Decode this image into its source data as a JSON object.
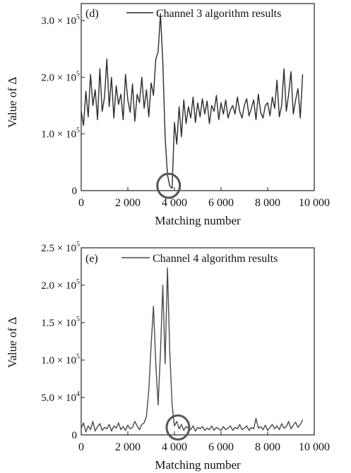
{
  "chart_data": [
    {
      "type": "line",
      "panel_label": "(d)",
      "legend": "Channel 3 algorithm results",
      "legend_position": "top-right",
      "xlabel": "Matching number",
      "ylabel": "Value of Δ",
      "xlim": [
        0,
        10000
      ],
      "ylim": [
        0,
        330000
      ],
      "grid": false,
      "x_ticks": [
        0,
        2000,
        4000,
        6000,
        8000,
        10000
      ],
      "x_tick_labels": [
        "0",
        "2 000",
        "4 000",
        "6 000",
        "8 000",
        "10 000"
      ],
      "y_ticks": [
        {
          "value": 0,
          "mantissa": "0",
          "exp": ""
        },
        {
          "value": 100000,
          "mantissa": "1.0 × 10",
          "exp": "5"
        },
        {
          "value": 200000,
          "mantissa": "2.0 × 10",
          "exp": "5"
        },
        {
          "value": 300000,
          "mantissa": "3.0 × 10",
          "exp": "5"
        }
      ],
      "line_color": "#2b2b2b",
      "series": [
        {
          "x": [
            0,
            100,
            200,
            300,
            400,
            500,
            600,
            700,
            800,
            900,
            1000,
            1100,
            1200,
            1300,
            1400,
            1500,
            1600,
            1700,
            1800,
            1900,
            2000,
            2100,
            2200,
            2300,
            2400,
            2500,
            2600,
            2700,
            2800,
            2900,
            3000,
            3100,
            3200,
            3300,
            3400,
            3500,
            3600,
            3700,
            3800,
            3900,
            4000,
            4100,
            4200,
            4300,
            4400,
            4500,
            4600,
            4700,
            4800,
            4900,
            5000,
            5100,
            5200,
            5300,
            5400,
            5500,
            5600,
            5700,
            5800,
            5900,
            6000,
            6100,
            6200,
            6300,
            6400,
            6500,
            6600,
            6700,
            6800,
            6900,
            7000,
            7100,
            7200,
            7300,
            7400,
            7500,
            7600,
            7700,
            7800,
            7900,
            8000,
            8100,
            8200,
            8300,
            8400,
            8500,
            8600,
            8700,
            8800,
            8900,
            9000,
            9100,
            9200,
            9300,
            9400,
            9500
          ],
          "y": [
            140000,
            115000,
            175000,
            130000,
            205000,
            150000,
            178000,
            125000,
            215000,
            140000,
            165000,
            232000,
            148000,
            200000,
            128000,
            185000,
            152000,
            170000,
            125000,
            205000,
            160000,
            138000,
            188000,
            122000,
            170000,
            155000,
            200000,
            145000,
            178000,
            130000,
            190000,
            168000,
            232000,
            245000,
            312000,
            228000,
            95000,
            28000,
            8000,
            4000,
            120000,
            82000,
            148000,
            95000,
            160000,
            118000,
            148000,
            128000,
            165000,
            120000,
            155000,
            130000,
            162000,
            135000,
            158000,
            118000,
            150000,
            140000,
            168000,
            125000,
            155000,
            135000,
            160000,
            128000,
            142000,
            150000,
            135000,
            165000,
            140000,
            128000,
            150000,
            162000,
            132000,
            145000,
            160000,
            125000,
            170000,
            138000,
            128000,
            150000,
            155000,
            132000,
            165000,
            145000,
            195000,
            130000,
            150000,
            215000,
            140000,
            170000,
            210000,
            135000,
            160000,
            180000,
            128000,
            205000
          ]
        }
      ],
      "annotation": "circle",
      "circle_center": [
        3750,
        6000
      ]
    },
    {
      "type": "line",
      "panel_label": "(e)",
      "legend": "Channel 4 algorithm results",
      "legend_position": "top-right",
      "xlabel": "Matching number",
      "ylabel": "Value of Δ",
      "xlim": [
        0,
        10000
      ],
      "ylim": [
        0,
        250000
      ],
      "grid": false,
      "x_ticks": [
        0,
        2000,
        4000,
        6000,
        8000,
        10000
      ],
      "x_tick_labels": [
        "0",
        "2 000",
        "4 000",
        "6 000",
        "8 000",
        "10 000"
      ],
      "y_ticks": [
        {
          "value": 0,
          "mantissa": "0",
          "exp": ""
        },
        {
          "value": 50000,
          "mantissa": "5.0 × 10",
          "exp": "4"
        },
        {
          "value": 100000,
          "mantissa": "1.0 × 10",
          "exp": "5"
        },
        {
          "value": 150000,
          "mantissa": "1.5 × 10",
          "exp": "5"
        },
        {
          "value": 200000,
          "mantissa": "2.0 × 10",
          "exp": "5"
        },
        {
          "value": 250000,
          "mantissa": "2.5 × 10",
          "exp": "5"
        }
      ],
      "line_color": "#4a4a4a",
      "series": [
        {
          "x": [
            0,
            100,
            200,
            300,
            400,
            500,
            600,
            700,
            800,
            900,
            1000,
            1100,
            1200,
            1300,
            1400,
            1500,
            1600,
            1700,
            1800,
            1900,
            2000,
            2100,
            2200,
            2300,
            2400,
            2500,
            2600,
            2700,
            2800,
            2900,
            3000,
            3100,
            3200,
            3300,
            3400,
            3500,
            3600,
            3700,
            3800,
            3900,
            4000,
            4100,
            4200,
            4300,
            4400,
            4500,
            4600,
            4700,
            4800,
            4900,
            5000,
            5100,
            5200,
            5300,
            5400,
            5500,
            5600,
            5700,
            5800,
            5900,
            6000,
            6100,
            6200,
            6300,
            6400,
            6500,
            6600,
            6700,
            6800,
            6900,
            7000,
            7100,
            7200,
            7300,
            7400,
            7500,
            7600,
            7700,
            7800,
            7900,
            8000,
            8100,
            8200,
            8300,
            8400,
            8500,
            8600,
            8700,
            8800,
            8900,
            9000,
            9100,
            9200,
            9300,
            9400,
            9500
          ],
          "y": [
            9000,
            16000,
            4000,
            12000,
            7000,
            18000,
            5000,
            11000,
            15000,
            6000,
            10000,
            8000,
            14000,
            5000,
            12000,
            9000,
            16000,
            7000,
            11000,
            6000,
            13000,
            8000,
            10000,
            18000,
            12000,
            7000,
            14000,
            16000,
            25000,
            60000,
            120000,
            172000,
            95000,
            40000,
            110000,
            200000,
            95000,
            223000,
            110000,
            40000,
            12000,
            18000,
            8000,
            14000,
            6000,
            11000,
            9000,
            7000,
            12000,
            5000,
            10000,
            8000,
            11000,
            6000,
            9000,
            7000,
            12000,
            6000,
            10000,
            8000,
            6000,
            11000,
            7000,
            9000,
            12000,
            6000,
            10000,
            8000,
            14000,
            7000,
            9000,
            12000,
            6000,
            10000,
            8000,
            22000,
            9000,
            11000,
            7000,
            13000,
            6000,
            10000,
            14000,
            8000,
            12000,
            7000,
            15000,
            9000,
            11000,
            18000,
            8000,
            13000,
            17000,
            10000,
            14000,
            20000
          ]
        }
      ],
      "annotation": "circle",
      "circle_center": [
        4150,
        8000
      ]
    }
  ]
}
